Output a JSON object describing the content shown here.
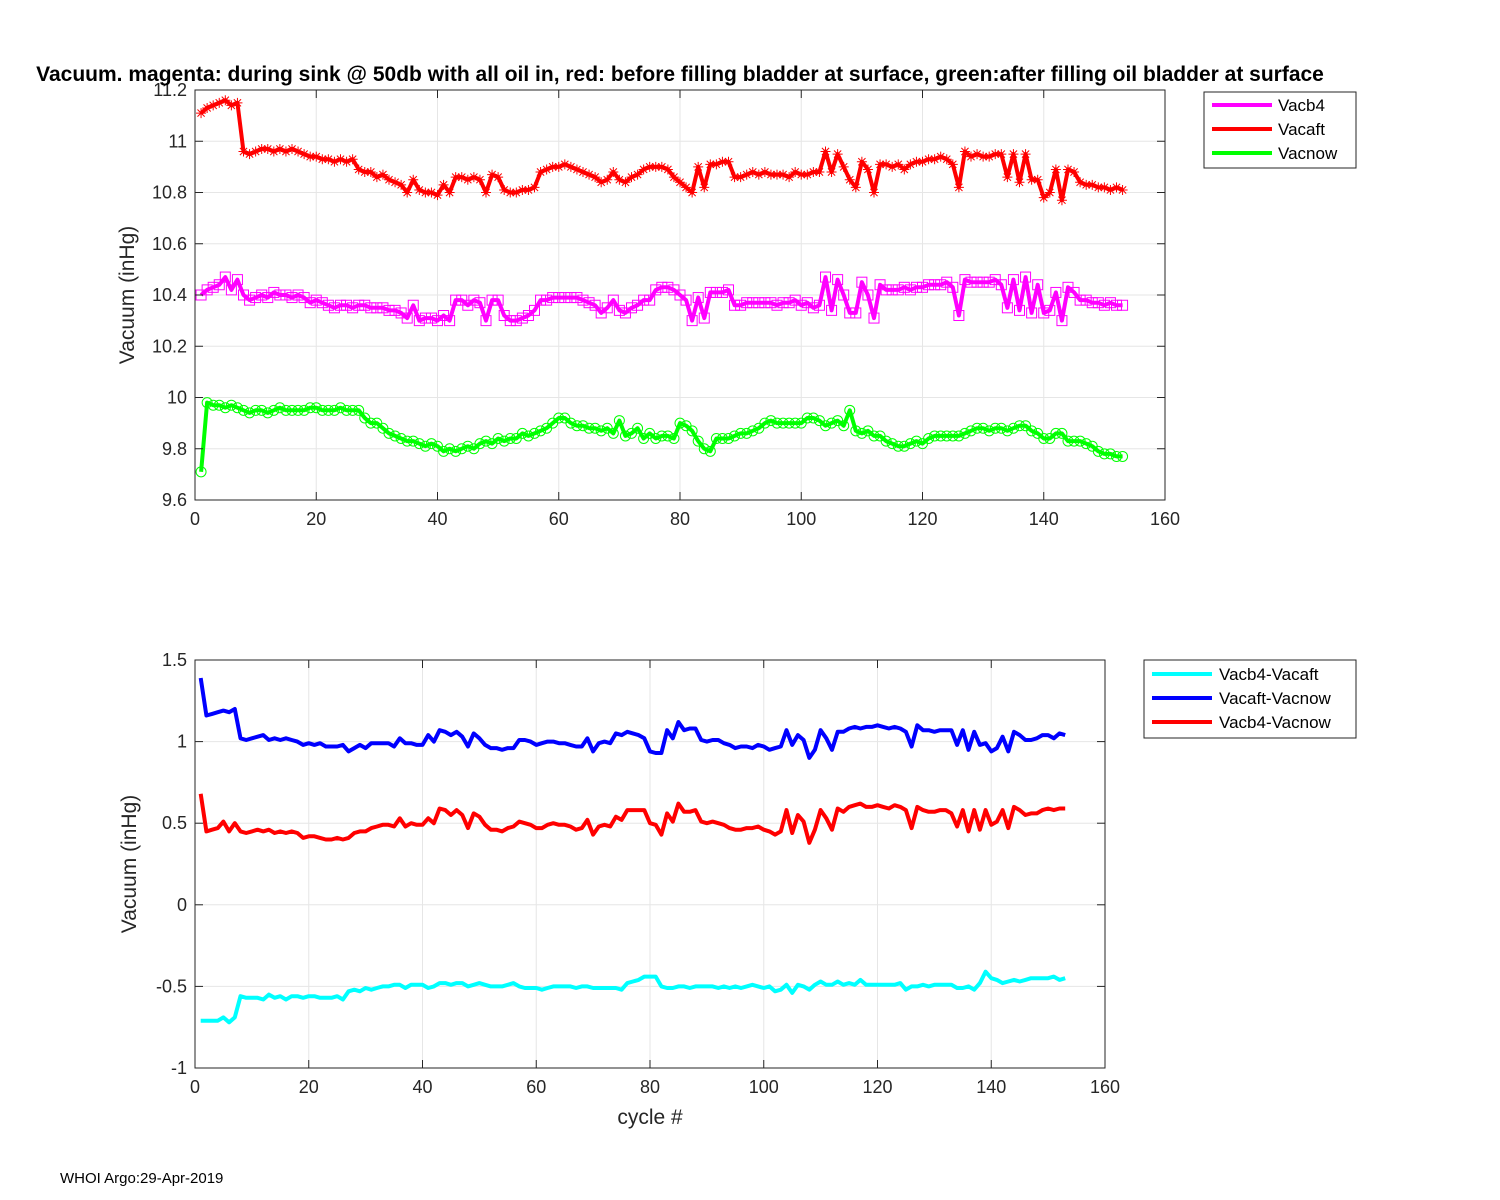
{
  "figure": {
    "footer": "WHOI Argo:29-Apr-2019"
  },
  "chart_data": [
    {
      "type": "line",
      "title": "Vacuum. magenta: during sink @ 50db with all oil in, red: before filling bladder at surface, green:after filling oil bladder at surface",
      "xlabel": "",
      "ylabel": "Vacuum (inHg)",
      "xlim": [
        0,
        160
      ],
      "ylim": [
        9.6,
        11.2
      ],
      "xticks": [
        0,
        20,
        40,
        60,
        80,
        100,
        120,
        140,
        160
      ],
      "yticks": [
        9.6,
        9.8,
        10,
        10.2,
        10.4,
        10.6,
        10.8,
        11,
        11.2
      ],
      "xtick_labels": [
        "0",
        "20",
        "40",
        "60",
        "80",
        "100",
        "120",
        "140",
        "160"
      ],
      "ytick_labels": [
        "9.6",
        "9.8",
        "10",
        "10.2",
        "10.4",
        "10.6",
        "10.8",
        "11",
        "11.2"
      ],
      "grid": true,
      "legend_position": "outside-top-right",
      "x_start": 1,
      "series": [
        {
          "name": "Vacb4",
          "color": "#ff00ff",
          "marker": "square",
          "values": [
            10.4,
            10.42,
            10.43,
            10.44,
            10.47,
            10.42,
            10.46,
            10.4,
            10.38,
            10.39,
            10.4,
            10.39,
            10.41,
            10.4,
            10.4,
            10.39,
            10.4,
            10.39,
            10.37,
            10.38,
            10.37,
            10.36,
            10.35,
            10.36,
            10.36,
            10.35,
            10.36,
            10.36,
            10.35,
            10.35,
            10.35,
            10.34,
            10.34,
            10.33,
            10.31,
            10.36,
            10.3,
            10.31,
            10.31,
            10.3,
            10.32,
            10.3,
            10.38,
            10.38,
            10.36,
            10.38,
            10.37,
            10.3,
            10.38,
            10.38,
            10.32,
            10.3,
            10.3,
            10.31,
            10.32,
            10.34,
            10.38,
            10.38,
            10.39,
            10.39,
            10.39,
            10.39,
            10.39,
            10.38,
            10.37,
            10.36,
            10.33,
            10.35,
            10.38,
            10.34,
            10.33,
            10.35,
            10.36,
            10.38,
            10.38,
            10.42,
            10.43,
            10.43,
            10.42,
            10.4,
            10.38,
            10.3,
            10.39,
            10.31,
            10.41,
            10.41,
            10.41,
            10.42,
            10.36,
            10.36,
            10.37,
            10.37,
            10.37,
            10.37,
            10.37,
            10.36,
            10.37,
            10.37,
            10.38,
            10.36,
            10.37,
            10.35,
            10.36,
            10.47,
            10.34,
            10.46,
            10.4,
            10.33,
            10.33,
            10.45,
            10.4,
            10.31,
            10.44,
            10.42,
            10.42,
            10.42,
            10.43,
            10.42,
            10.43,
            10.43,
            10.44,
            10.44,
            10.44,
            10.45,
            10.43,
            10.32,
            10.46,
            10.45,
            10.45,
            10.45,
            10.45,
            10.46,
            10.44,
            10.35,
            10.46,
            10.34,
            10.47,
            10.33,
            10.44,
            10.33,
            10.34,
            10.41,
            10.3,
            10.43,
            10.41,
            10.38,
            10.38,
            10.37,
            10.37,
            10.36,
            10.37,
            10.36,
            10.36
          ]
        },
        {
          "name": "Vacaft",
          "color": "#ff0000",
          "marker": "asterisk",
          "values": [
            11.11,
            11.13,
            11.14,
            11.15,
            11.16,
            11.14,
            11.15,
            10.96,
            10.95,
            10.96,
            10.97,
            10.97,
            10.96,
            10.97,
            10.96,
            10.97,
            10.96,
            10.95,
            10.94,
            10.94,
            10.93,
            10.93,
            10.92,
            10.93,
            10.92,
            10.93,
            10.89,
            10.88,
            10.88,
            10.86,
            10.87,
            10.85,
            10.84,
            10.83,
            10.8,
            10.85,
            10.81,
            10.8,
            10.8,
            10.79,
            10.83,
            10.8,
            10.86,
            10.86,
            10.85,
            10.86,
            10.85,
            10.8,
            10.87,
            10.86,
            10.81,
            10.8,
            10.8,
            10.81,
            10.81,
            10.82,
            10.88,
            10.89,
            10.9,
            10.9,
            10.91,
            10.9,
            10.89,
            10.88,
            10.87,
            10.86,
            10.84,
            10.85,
            10.88,
            10.85,
            10.84,
            10.86,
            10.87,
            10.89,
            10.9,
            10.9,
            10.9,
            10.89,
            10.86,
            10.84,
            10.82,
            10.8,
            10.9,
            10.82,
            10.91,
            10.91,
            10.92,
            10.92,
            10.86,
            10.86,
            10.87,
            10.88,
            10.87,
            10.88,
            10.87,
            10.87,
            10.87,
            10.86,
            10.88,
            10.87,
            10.87,
            10.88,
            10.88,
            10.96,
            10.88,
            10.95,
            10.9,
            10.85,
            10.82,
            10.92,
            10.89,
            10.8,
            10.91,
            10.91,
            10.9,
            10.91,
            10.89,
            10.91,
            10.92,
            10.92,
            10.93,
            10.93,
            10.94,
            10.93,
            10.91,
            10.82,
            10.96,
            10.94,
            10.95,
            10.94,
            10.94,
            10.95,
            10.95,
            10.86,
            10.95,
            10.84,
            10.95,
            10.85,
            10.85,
            10.78,
            10.8,
            10.89,
            10.77,
            10.89,
            10.88,
            10.84,
            10.83,
            10.83,
            10.82,
            10.82,
            10.81,
            10.82,
            10.81
          ]
        },
        {
          "name": "Vacnow",
          "color": "#00ff00",
          "marker": "circle",
          "values": [
            9.71,
            9.98,
            9.97,
            9.97,
            9.96,
            9.97,
            9.96,
            9.95,
            9.94,
            9.95,
            9.95,
            9.94,
            9.95,
            9.96,
            9.95,
            9.95,
            9.95,
            9.95,
            9.96,
            9.96,
            9.95,
            9.95,
            9.95,
            9.96,
            9.95,
            9.95,
            9.95,
            9.92,
            9.9,
            9.9,
            9.88,
            9.86,
            9.85,
            9.84,
            9.83,
            9.83,
            9.82,
            9.81,
            9.82,
            9.81,
            9.79,
            9.8,
            9.79,
            9.8,
            9.81,
            9.8,
            9.82,
            9.83,
            9.82,
            9.84,
            9.83,
            9.84,
            9.84,
            9.86,
            9.85,
            9.86,
            9.87,
            9.88,
            9.9,
            9.92,
            9.92,
            9.9,
            9.89,
            9.89,
            9.88,
            9.88,
            9.87,
            9.88,
            9.86,
            9.91,
            9.85,
            9.86,
            9.88,
            9.84,
            9.86,
            9.84,
            9.85,
            9.85,
            9.84,
            9.9,
            9.89,
            9.87,
            9.83,
            9.8,
            9.79,
            9.84,
            9.84,
            9.84,
            9.85,
            9.86,
            9.86,
            9.87,
            9.88,
            9.9,
            9.91,
            9.9,
            9.9,
            9.9,
            9.9,
            9.9,
            9.92,
            9.92,
            9.91,
            9.89,
            9.9,
            9.91,
            9.89,
            9.95,
            9.87,
            9.86,
            9.87,
            9.85,
            9.85,
            9.83,
            9.82,
            9.81,
            9.81,
            9.82,
            9.83,
            9.82,
            9.84,
            9.85,
            9.85,
            9.85,
            9.85,
            9.85,
            9.86,
            9.87,
            9.88,
            9.88,
            9.87,
            9.88,
            9.88,
            9.87,
            9.88,
            9.89,
            9.89,
            9.87,
            9.86,
            9.84,
            9.84,
            9.86,
            9.86,
            9.83,
            9.83,
            9.83,
            9.82,
            9.81,
            9.79,
            9.78,
            9.78,
            9.77,
            9.77
          ]
        }
      ]
    },
    {
      "type": "line",
      "title": "",
      "xlabel": "cycle #",
      "ylabel": "Vacuum (inHg)",
      "xlim": [
        0,
        160
      ],
      "ylim": [
        -1,
        1.5
      ],
      "xticks": [
        0,
        20,
        40,
        60,
        80,
        100,
        120,
        140,
        160
      ],
      "yticks": [
        -1,
        -0.5,
        0,
        0.5,
        1,
        1.5
      ],
      "xtick_labels": [
        "0",
        "20",
        "40",
        "60",
        "80",
        "100",
        "120",
        "140",
        "160"
      ],
      "ytick_labels": [
        "-1",
        "-0.5",
        "0",
        "0.5",
        "1",
        "1.5"
      ],
      "grid": true,
      "legend_position": "outside-top-right",
      "x_start": 1,
      "series": [
        {
          "name": "Vacb4-Vacaft",
          "color": "#00ffff",
          "values": [
            -0.71,
            -0.71,
            -0.71,
            -0.71,
            -0.69,
            -0.72,
            -0.69,
            -0.56,
            -0.57,
            -0.57,
            -0.57,
            -0.58,
            -0.55,
            -0.57,
            -0.56,
            -0.58,
            -0.56,
            -0.56,
            -0.57,
            -0.56,
            -0.56,
            -0.57,
            -0.57,
            -0.57,
            -0.56,
            -0.58,
            -0.53,
            -0.52,
            -0.53,
            -0.51,
            -0.52,
            -0.51,
            -0.5,
            -0.5,
            -0.49,
            -0.49,
            -0.51,
            -0.49,
            -0.49,
            -0.49,
            -0.51,
            -0.5,
            -0.48,
            -0.48,
            -0.49,
            -0.48,
            -0.48,
            -0.5,
            -0.49,
            -0.48,
            -0.49,
            -0.5,
            -0.5,
            -0.5,
            -0.49,
            -0.48,
            -0.5,
            -0.51,
            -0.51,
            -0.51,
            -0.52,
            -0.51,
            -0.5,
            -0.5,
            -0.5,
            -0.5,
            -0.51,
            -0.5,
            -0.5,
            -0.51,
            -0.51,
            -0.51,
            -0.51,
            -0.51,
            -0.52,
            -0.48,
            -0.47,
            -0.46,
            -0.44,
            -0.44,
            -0.44,
            -0.5,
            -0.51,
            -0.51,
            -0.5,
            -0.5,
            -0.51,
            -0.5,
            -0.5,
            -0.5,
            -0.5,
            -0.51,
            -0.5,
            -0.51,
            -0.5,
            -0.51,
            -0.5,
            -0.49,
            -0.5,
            -0.51,
            -0.5,
            -0.53,
            -0.52,
            -0.49,
            -0.54,
            -0.49,
            -0.5,
            -0.52,
            -0.49,
            -0.47,
            -0.49,
            -0.49,
            -0.47,
            -0.49,
            -0.48,
            -0.49,
            -0.46,
            -0.49,
            -0.49,
            -0.49,
            -0.49,
            -0.49,
            -0.49,
            -0.48,
            -0.52,
            -0.5,
            -0.5,
            -0.49,
            -0.5,
            -0.49,
            -0.49,
            -0.49,
            -0.49,
            -0.51,
            -0.51,
            -0.5,
            -0.52,
            -0.48,
            -0.41,
            -0.45,
            -0.46,
            -0.48,
            -0.47,
            -0.46,
            -0.47,
            -0.46,
            -0.45,
            -0.45,
            -0.45,
            -0.45,
            -0.44,
            -0.46,
            -0.45
          ]
        },
        {
          "name": "Vacaft-Vacnow",
          "color": "#0000ff",
          "values": [
            1.39,
            1.16,
            1.17,
            1.18,
            1.19,
            1.18,
            1.2,
            1.02,
            1.01,
            1.02,
            1.03,
            1.04,
            1.01,
            1.02,
            1.01,
            1.02,
            1.01,
            1.0,
            0.98,
            0.99,
            0.98,
            0.99,
            0.97,
            0.97,
            0.97,
            0.98,
            0.94,
            0.96,
            0.98,
            0.96,
            0.99,
            0.99,
            0.99,
            0.99,
            0.97,
            1.02,
            0.99,
            0.99,
            0.98,
            0.98,
            1.04,
            1.0,
            1.07,
            1.06,
            1.04,
            1.06,
            1.03,
            0.97,
            1.05,
            1.02,
            0.98,
            0.96,
            0.96,
            0.95,
            0.96,
            0.96,
            1.01,
            1.01,
            1.0,
            0.98,
            0.99,
            1.0,
            1.0,
            0.99,
            0.99,
            0.98,
            0.97,
            0.97,
            1.02,
            0.94,
            0.99,
            1.0,
            0.99,
            1.05,
            1.04,
            1.06,
            1.05,
            1.04,
            1.02,
            0.94,
            0.93,
            0.93,
            1.07,
            1.02,
            1.12,
            1.07,
            1.08,
            1.08,
            1.01,
            1.0,
            1.01,
            1.01,
            0.99,
            0.98,
            0.96,
            0.97,
            0.97,
            0.96,
            0.98,
            0.97,
            0.95,
            0.96,
            0.97,
            1.07,
            0.98,
            1.04,
            1.01,
            0.9,
            0.95,
            1.07,
            1.02,
            0.95,
            1.06,
            1.06,
            1.08,
            1.09,
            1.08,
            1.09,
            1.09,
            1.1,
            1.09,
            1.08,
            1.09,
            1.08,
            1.06,
            0.97,
            1.1,
            1.07,
            1.07,
            1.06,
            1.07,
            1.07,
            1.07,
            0.98,
            1.07,
            0.95,
            1.06,
            0.98,
            0.99,
            0.94,
            0.96,
            1.03,
            0.94,
            1.06,
            1.04,
            1.01,
            1.01,
            1.02,
            1.04,
            1.04,
            1.02,
            1.05,
            1.04
          ]
        },
        {
          "name": "Vacb4-Vacnow",
          "color": "#ff0000",
          "values": [
            0.68,
            0.45,
            0.46,
            0.47,
            0.51,
            0.45,
            0.5,
            0.45,
            0.44,
            0.45,
            0.46,
            0.45,
            0.46,
            0.44,
            0.45,
            0.44,
            0.45,
            0.44,
            0.41,
            0.42,
            0.42,
            0.41,
            0.4,
            0.4,
            0.41,
            0.4,
            0.41,
            0.44,
            0.45,
            0.45,
            0.47,
            0.48,
            0.49,
            0.49,
            0.48,
            0.53,
            0.48,
            0.5,
            0.49,
            0.49,
            0.53,
            0.5,
            0.59,
            0.58,
            0.55,
            0.58,
            0.55,
            0.47,
            0.56,
            0.54,
            0.49,
            0.46,
            0.46,
            0.45,
            0.47,
            0.48,
            0.51,
            0.5,
            0.49,
            0.47,
            0.47,
            0.49,
            0.5,
            0.49,
            0.49,
            0.48,
            0.46,
            0.47,
            0.52,
            0.43,
            0.48,
            0.49,
            0.48,
            0.54,
            0.52,
            0.58,
            0.58,
            0.58,
            0.58,
            0.5,
            0.49,
            0.43,
            0.56,
            0.51,
            0.62,
            0.57,
            0.57,
            0.58,
            0.51,
            0.5,
            0.51,
            0.5,
            0.49,
            0.47,
            0.46,
            0.46,
            0.47,
            0.47,
            0.48,
            0.46,
            0.45,
            0.43,
            0.45,
            0.58,
            0.44,
            0.55,
            0.51,
            0.38,
            0.46,
            0.58,
            0.53,
            0.46,
            0.59,
            0.57,
            0.6,
            0.61,
            0.62,
            0.6,
            0.6,
            0.61,
            0.6,
            0.59,
            0.61,
            0.6,
            0.58,
            0.47,
            0.6,
            0.58,
            0.57,
            0.57,
            0.58,
            0.58,
            0.56,
            0.48,
            0.58,
            0.45,
            0.58,
            0.46,
            0.58,
            0.49,
            0.51,
            0.58,
            0.47,
            0.6,
            0.58,
            0.55,
            0.56,
            0.56,
            0.58,
            0.59,
            0.58,
            0.59,
            0.59
          ]
        }
      ]
    }
  ]
}
